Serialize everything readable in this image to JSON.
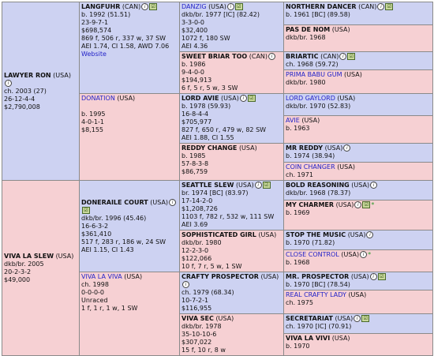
{
  "icons": {
    "info": "i",
    "pp": "☑",
    "star": "*"
  },
  "colors": {
    "sire_side": "#cdd2f2",
    "dam_side": "#f6d0d3",
    "subject": "#dcedca",
    "link": "#2323c8",
    "border": "#8a8a8a"
  },
  "subject": {
    "name": "LAWYER RON",
    "country": "(USA)",
    "lines": [
      "ch. 2003 (27)",
      "26-12-4-4",
      "$2,790,008"
    ]
  },
  "subject_dam": {
    "name": "VIVA LA SLEW",
    "country": "(USA)",
    "lines": [
      "dkb/br. 2005",
      "20-2-3-2",
      "$49,000"
    ]
  },
  "langfuhr": {
    "name": "LANGFUHR",
    "country": "(CAN)",
    "lines": [
      "b. 1992 (51.51)",
      "23-9-7-1",
      "$698,574",
      "869 f, 506 r, 337 w, 37 SW",
      "AEI 1.74, CI 1.58, AWD 7.06"
    ],
    "website": "Website"
  },
  "donation": {
    "name": "DONATION",
    "country": "(USA)",
    "lines": [
      "b. 1995",
      "4-0-1-1",
      "$8,155"
    ]
  },
  "doneraile": {
    "name": "DONERAILE COURT",
    "country": "(USA)",
    "lines": [
      "dkb/br. 1996 (45.46)",
      "16-6-3-2",
      "$361,410",
      "517 f, 283 r, 186 w, 24 SW",
      "AEI 1.15, CI 1.43"
    ]
  },
  "vivalaviva": {
    "name": "VIVA LA VIVA",
    "country": "(USA)",
    "lines": [
      "ch. 1998",
      "0-0-0-0",
      "Unraced",
      "1 f, 1 r, 1 w, 1 SW"
    ]
  },
  "danzig": {
    "name": "DANZIG",
    "country": "(USA)",
    "lines": [
      "dkb/br. 1977 [IC] (82.42)",
      "3-3-0-0",
      "$32,400",
      "1072 f, 180 SW",
      "AEI 4.36"
    ]
  },
  "sweetbriar": {
    "name": "SWEET BRIAR TOO",
    "country": "(CAN)",
    "lines": [
      "b. 1986",
      "9-4-0-0",
      "$194,913",
      "6 f, 5 r, 5 w, 3 SW"
    ]
  },
  "lordavie": {
    "name": "LORD AVIE",
    "country": "(USA)",
    "lines": [
      "b. 1978 (59.93)",
      "16-8-4-4",
      "$705,977",
      "827 f, 650 r, 479 w, 82 SW",
      "AEI 1.88, CI 1.55"
    ]
  },
  "reddychange": {
    "name": "REDDY CHANGE",
    "country": "(USA)",
    "lines": [
      "b. 1985",
      "57-8-3-8",
      "$86,759"
    ]
  },
  "seattleslew": {
    "name": "SEATTLE SLEW",
    "country": "(USA)",
    "lines": [
      "br. 1974 [BC] (83.97)",
      "17-14-2-0",
      "$1,208,726",
      "1103 f, 782 r, 532 w, 111 SW",
      "AEI 3.69"
    ]
  },
  "sophisticated": {
    "name": "SOPHISTICATED GIRL",
    "country": "(USA)",
    "lines": [
      "dkb/br. 1980",
      "12-2-3-0",
      "$122,066",
      "10 f, 7 r, 5 w, 1 SW"
    ]
  },
  "craftyprospector": {
    "name": "CRAFTY PROSPECTOR",
    "country": "(USA)",
    "lines": [
      "ch. 1979 (68.34)",
      "10-7-2-1",
      "$116,955"
    ]
  },
  "vivasec": {
    "name": "VIVA SEC",
    "country": "(USA)",
    "lines": [
      "dkb/br. 1978",
      "35-10-10-6",
      "$307,022",
      "15 f, 10 r, 8 w"
    ]
  },
  "northerndancer": {
    "name": "NORTHERN DANCER",
    "country": "(CAN)",
    "line": "b. 1961 [BC] (89.58)"
  },
  "pasdenom": {
    "name": "PAS DE NOM",
    "country": "(USA)",
    "line": "dkb/br. 1968"
  },
  "briartic": {
    "name": "BRIARTIC",
    "country": "(CAN)",
    "line": "ch. 1968 (59.72)"
  },
  "primababugum": {
    "name": "PRIMA BABU GUM",
    "country": "(USA)",
    "line": "dkb/br. 1980"
  },
  "lordgaylord": {
    "name": "LORD GAYLORD",
    "country": "(USA)",
    "line": "dkb/br. 1970 (52.83)"
  },
  "avie": {
    "name": "AVIE",
    "country": "(USA)",
    "line": "b. 1963"
  },
  "mrreddy": {
    "name": "MR REDDY",
    "country": "(USA)",
    "line": "b. 1974 (38.94)"
  },
  "coinchanger": {
    "name": "COIN CHANGER",
    "country": "(USA)",
    "line": "ch. 1971"
  },
  "boldreasoning": {
    "name": "BOLD REASONING",
    "country": "(USA)",
    "line": "dkb/br. 1968 (78.37)"
  },
  "mycharmer": {
    "name": "MY CHARMER",
    "country": "(USA)",
    "line": "b. 1969"
  },
  "stopthemusic": {
    "name": "STOP THE MUSIC",
    "country": "(USA)",
    "line": "b. 1970 (71.82)"
  },
  "closecontrol": {
    "name": "CLOSE CONTROL",
    "country": "(USA)",
    "line": "b. 1968"
  },
  "mrprospector": {
    "name": "MR. PROSPECTOR",
    "country": "(USA)",
    "line": "b. 1970 [BC] (78.54)"
  },
  "realcraftylady": {
    "name": "REAL CRAFTY LADY",
    "country": "(USA)",
    "line": "ch. 1975"
  },
  "secretariat": {
    "name": "SECRETARIAT",
    "country": "(USA)",
    "line": "ch. 1970 [IC] (70.91)"
  },
  "vivalavivi": {
    "name": "VIVA LA VIVI",
    "country": "(USA)",
    "line": "b. 1970"
  }
}
